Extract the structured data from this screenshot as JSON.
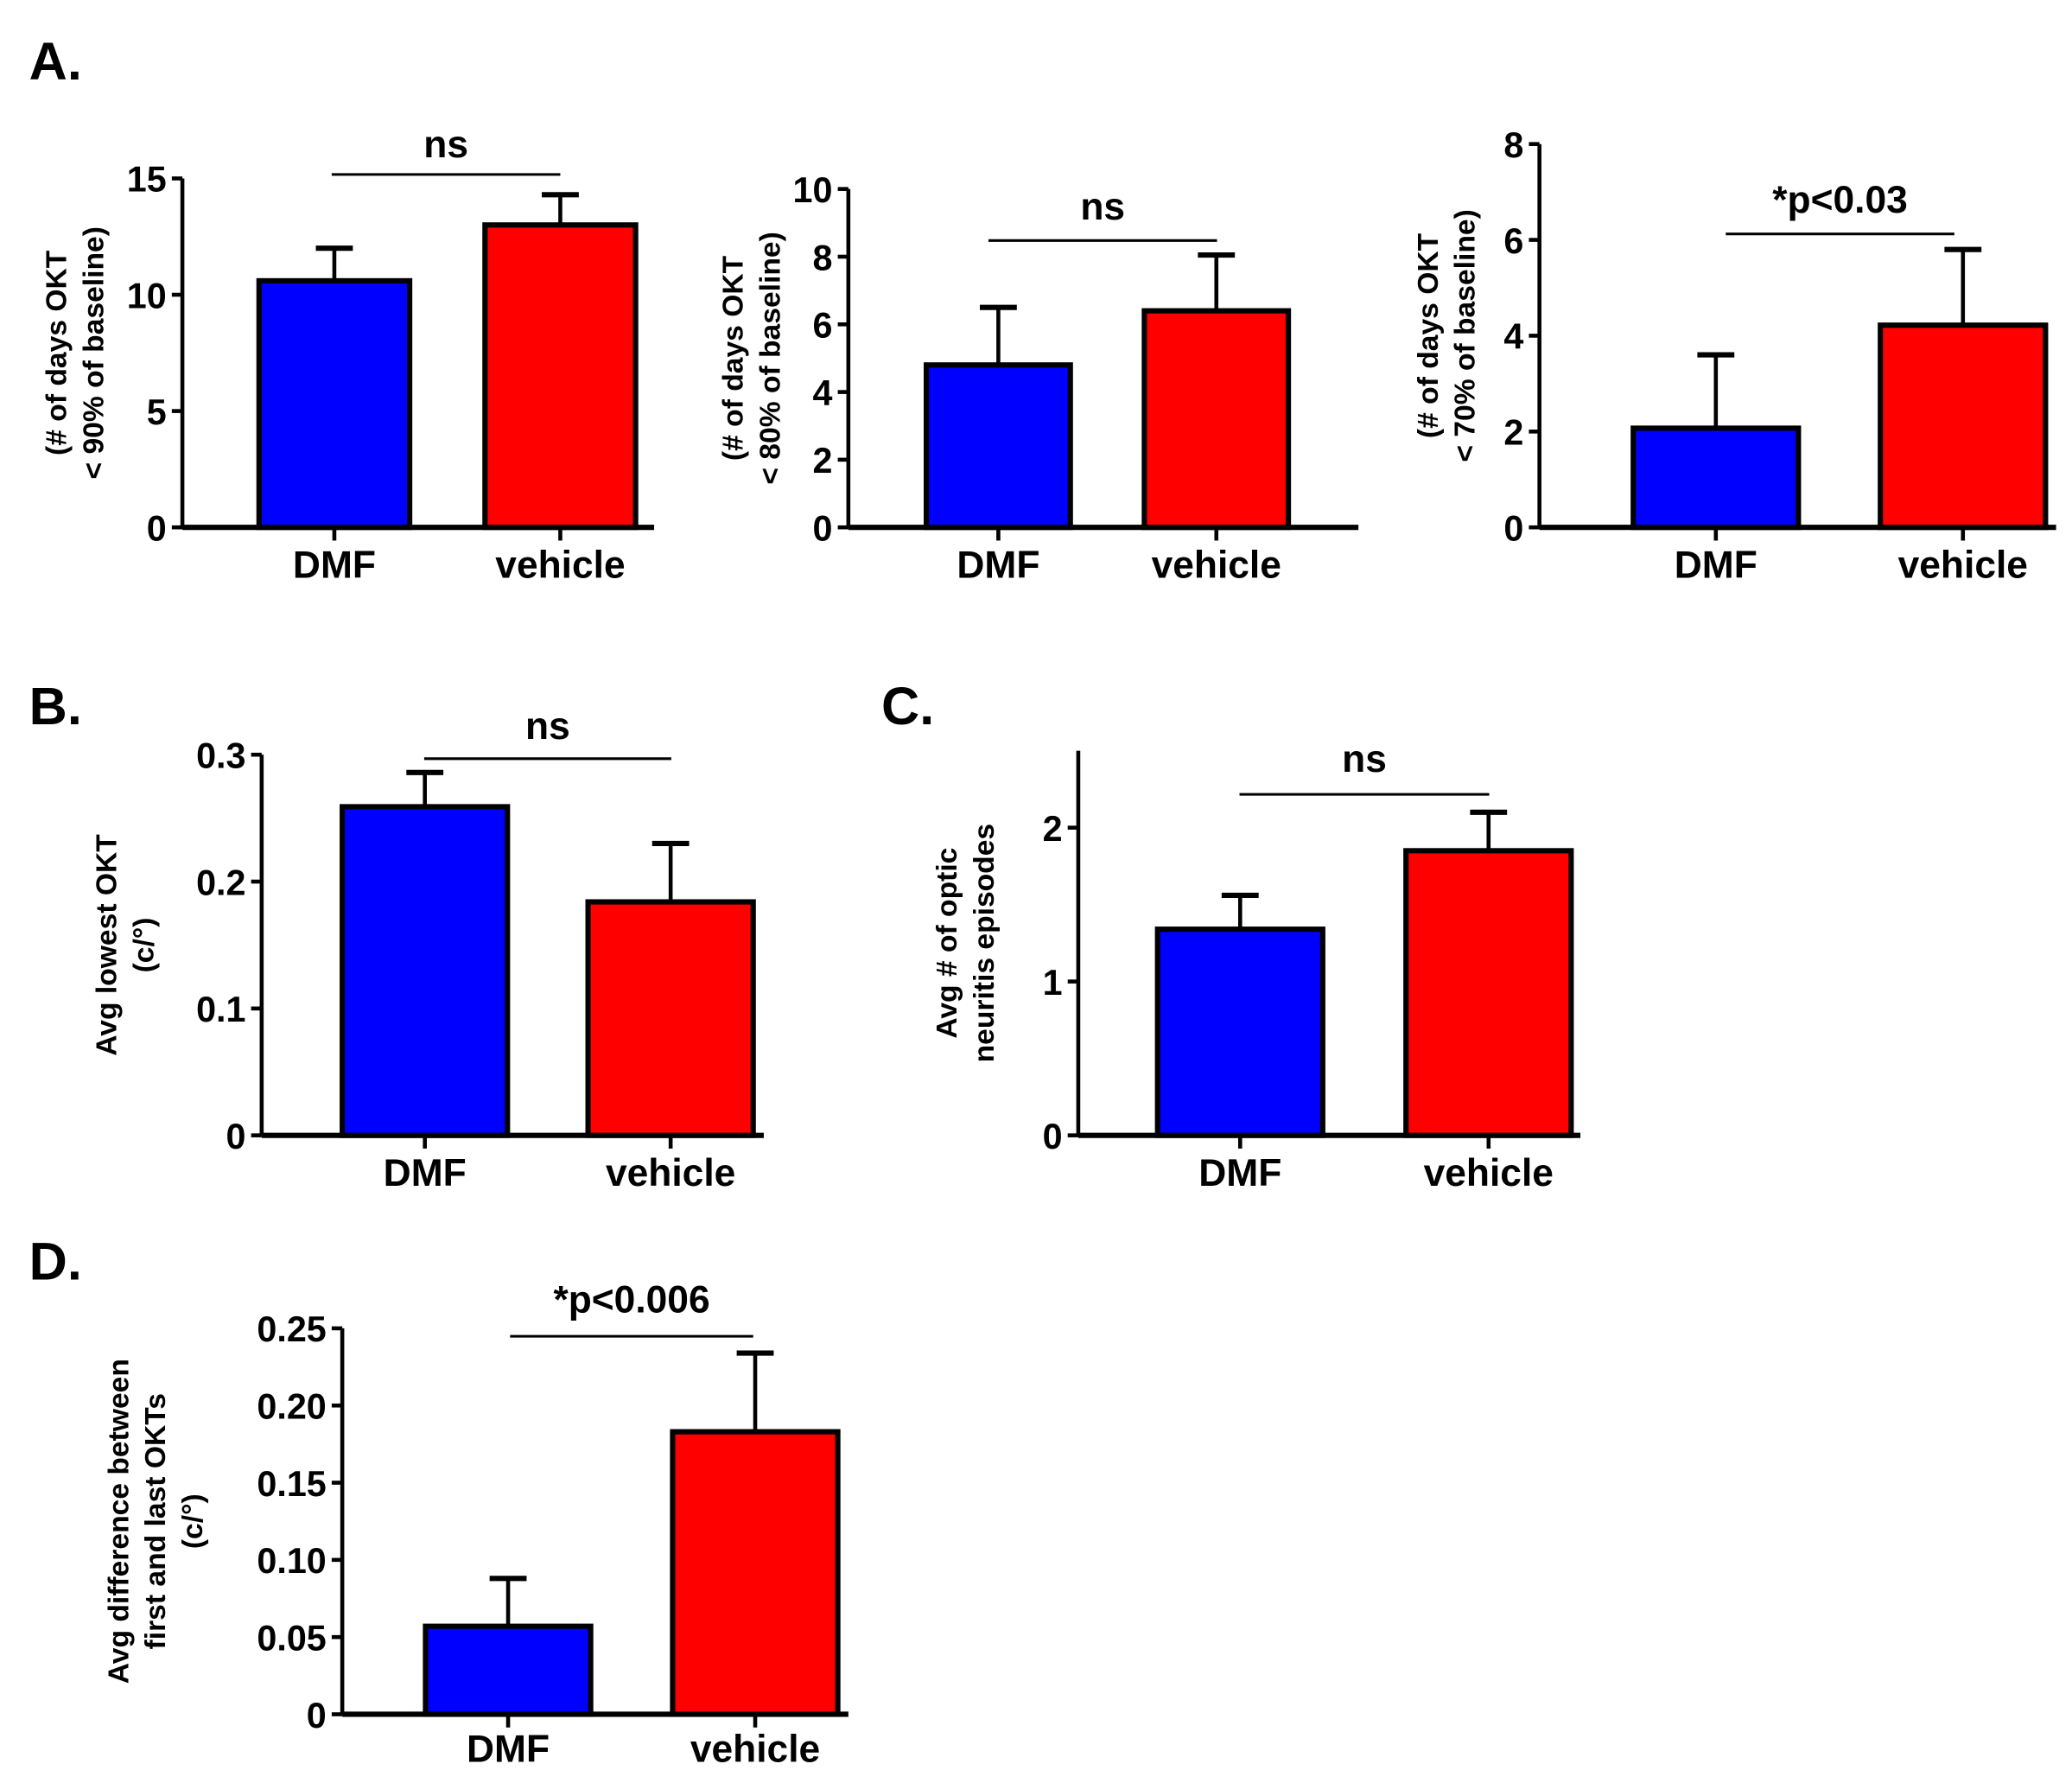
{
  "colors": {
    "DMF": "#0000ff",
    "vehicle": "#ff0000",
    "axis": "#000000"
  },
  "chart_data": [
    {
      "panel": "A.",
      "type": "bar",
      "categories": [
        "DMF",
        "vehicle"
      ],
      "values": [
        10.6,
        13.0
      ],
      "error_upper": [
        12.0,
        14.3
      ],
      "ylabel": [
        "(# of days OKT",
        "< 90% of baseline)"
      ],
      "ylim": [
        0,
        15
      ],
      "yticks": [
        "0",
        "5",
        "10",
        "15"
      ],
      "annotation": "ns",
      "grid": false
    },
    {
      "panel": "",
      "type": "bar",
      "categories": [
        "DMF",
        "vehicle"
      ],
      "values": [
        4.8,
        6.4
      ],
      "error_upper": [
        6.5,
        8.05
      ],
      "ylabel": [
        "(# of days OKT",
        "< 80% of baseline)"
      ],
      "ylim": [
        0,
        10
      ],
      "yticks": [
        "0",
        "2",
        "4",
        "6",
        "8",
        "10"
      ],
      "annotation": "ns",
      "grid": false
    },
    {
      "panel": "",
      "type": "bar",
      "categories": [
        "DMF",
        "vehicle"
      ],
      "values": [
        2.07,
        4.22
      ],
      "error_upper": [
        3.6,
        5.8
      ],
      "ylabel": [
        "(# of days OKT",
        "< 70% of baseline)"
      ],
      "ylim": [
        0,
        8
      ],
      "yticks": [
        "0",
        "2",
        "4",
        "6",
        "8"
      ],
      "annotation": "*p<0.03",
      "grid": false
    },
    {
      "panel": "B.",
      "type": "bar",
      "categories": [
        "DMF",
        "vehicle"
      ],
      "values": [
        0.259,
        0.184
      ],
      "error_upper": [
        0.286,
        0.23
      ],
      "ylabel": [
        "Avg lowest OKT",
        "(c/°)"
      ],
      "ylim": [
        0,
        0.3
      ],
      "yticks": [
        "0",
        "0.1",
        "0.2",
        "0.3"
      ],
      "annotation": "ns",
      "grid": false
    },
    {
      "panel": "C.",
      "type": "bar",
      "categories": [
        "DMF",
        "vehicle"
      ],
      "values": [
        1.34,
        1.85
      ],
      "error_upper": [
        1.56,
        2.1
      ],
      "ylabel": [
        "Avg # of optic",
        "neuritis episodes"
      ],
      "ylim": [
        0,
        2.5
      ],
      "yticks": [
        "0",
        "1",
        "2"
      ],
      "annotation": "ns",
      "grid": false
    },
    {
      "panel": "D.",
      "type": "bar",
      "categories": [
        "DMF",
        "vehicle"
      ],
      "values": [
        0.057,
        0.183
      ],
      "error_upper": [
        0.088,
        0.234
      ],
      "ylabel": [
        "Avg difference between",
        "first and last OKTs",
        "(c/°)"
      ],
      "ylim": [
        0,
        0.25
      ],
      "yticks": [
        "0",
        "0.05",
        "0.10",
        "0.15",
        "0.20",
        "0.25"
      ],
      "annotation": "*p<0.006",
      "grid": false
    }
  ]
}
